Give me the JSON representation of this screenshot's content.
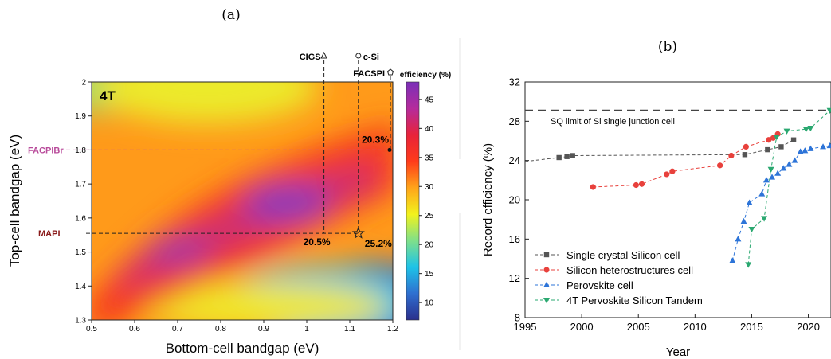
{
  "panel_labels": {
    "a": "(a)",
    "b": "(b)"
  },
  "chart_data": [
    {
      "type": "heatmap",
      "xlabel": "Bottom-cell bandgap (eV)",
      "ylabel": "Top-cell bandgap (eV)",
      "xlim": [
        0.5,
        1.2
      ],
      "ylim": [
        1.3,
        2.0
      ],
      "xticks": [
        "0.5",
        "0.6",
        "0.7",
        "0.8",
        "0.9",
        "1",
        "1.1",
        "1.2"
      ],
      "yticks": [
        "1.3",
        "1.4",
        "1.5",
        "1.6",
        "1.7",
        "1.8",
        "1.9",
        "2"
      ],
      "inset_label": "4T",
      "colorbar": {
        "title": "efficiency (%)",
        "range": [
          7,
          48
        ],
        "ticks": [
          "10",
          "15",
          "20",
          "25",
          "30",
          "35",
          "40",
          "45"
        ],
        "colors": [
          "#2b2f8c",
          "#2f6fd0",
          "#1ec3e8",
          "#7fe08a",
          "#f2f21c",
          "#ffa41a",
          "#ff3b1a",
          "#e8233a",
          "#b52b9c",
          "#7a2fb8"
        ]
      },
      "markers": [
        {
          "label": "CIGS",
          "x": 1.04,
          "symbol": "triangle"
        },
        {
          "label": "c-Si",
          "x": 1.12,
          "symbol": "circle"
        },
        {
          "label": "FACSPI",
          "x": 1.2,
          "symbol": "pentagon"
        },
        {
          "label": "FACPIBr",
          "y": 1.8
        },
        {
          "label": "MAPI",
          "y": 1.555
        }
      ],
      "annotations": [
        {
          "text": "20.3%",
          "x": 1.2,
          "y": 1.8
        },
        {
          "text": "20.5%",
          "x": 1.04,
          "y": 1.555
        },
        {
          "text": "25.2%",
          "x": 1.12,
          "y": 1.555
        }
      ],
      "peak": {
        "x": 0.95,
        "y": 1.65,
        "value": 47
      }
    },
    {
      "type": "line",
      "xlabel": "Year",
      "ylabel": "Record efficiency (%)",
      "xlim": [
        1995,
        2022
      ],
      "ylim": [
        8,
        32
      ],
      "xticks": [
        "1995",
        "2000",
        "2005",
        "2010",
        "2015",
        "2020"
      ],
      "yticks": [
        "8",
        "12",
        "16",
        "20",
        "24",
        "28",
        "32"
      ],
      "reference_line": {
        "label": "SQ limit of Si single junction cell",
        "y": 29.1
      },
      "legend_position": "bottom-left",
      "series": [
        {
          "name": "Single crystal Silicon cell",
          "color": "#555555",
          "marker": "square",
          "x": [
            1995,
            1998,
            1998.7,
            1999.2,
            2014.4,
            2016.4,
            2017.6,
            2018.7
          ],
          "y": [
            23.9,
            24.3,
            24.4,
            24.5,
            24.6,
            25.1,
            25.4,
            26.1
          ]
        },
        {
          "name": "Silicon heterostructures cell",
          "color": "#e8413c",
          "marker": "circle",
          "x": [
            2001,
            2004.8,
            2005.3,
            2007.5,
            2008,
            2012.2,
            2013.2,
            2014.5,
            2016.5,
            2016.9,
            2017.3
          ],
          "y": [
            21.3,
            21.5,
            21.6,
            22.6,
            22.9,
            23.5,
            24.5,
            25.4,
            26.1,
            26.3,
            26.7
          ]
        },
        {
          "name": "Perovskite cell",
          "color": "#2d74d8",
          "marker": "triangle-up",
          "x": [
            2013.3,
            2013.8,
            2014.3,
            2014.8,
            2015.9,
            2016.3,
            2016.8,
            2017.3,
            2017.8,
            2018.3,
            2018.8,
            2019.3,
            2019.7,
            2020.2,
            2021.3,
            2021.9
          ],
          "y": [
            13.8,
            16.0,
            17.8,
            19.7,
            20.6,
            22.0,
            22.3,
            22.7,
            23.2,
            23.6,
            24.0,
            24.9,
            25.0,
            25.2,
            25.4,
            25.5
          ]
        },
        {
          "name": "4T Pervoskite Silicon Tandem",
          "color": "#2aa870",
          "marker": "triangle-down",
          "x": [
            2014.7,
            2015,
            2016.1,
            2016.7,
            2017.2,
            2018.1,
            2019.8,
            2020.2,
            2021.9
          ],
          "y": [
            13.4,
            17.0,
            18.1,
            23.1,
            26.4,
            27.0,
            27.2,
            27.3,
            29.1
          ]
        }
      ]
    }
  ]
}
